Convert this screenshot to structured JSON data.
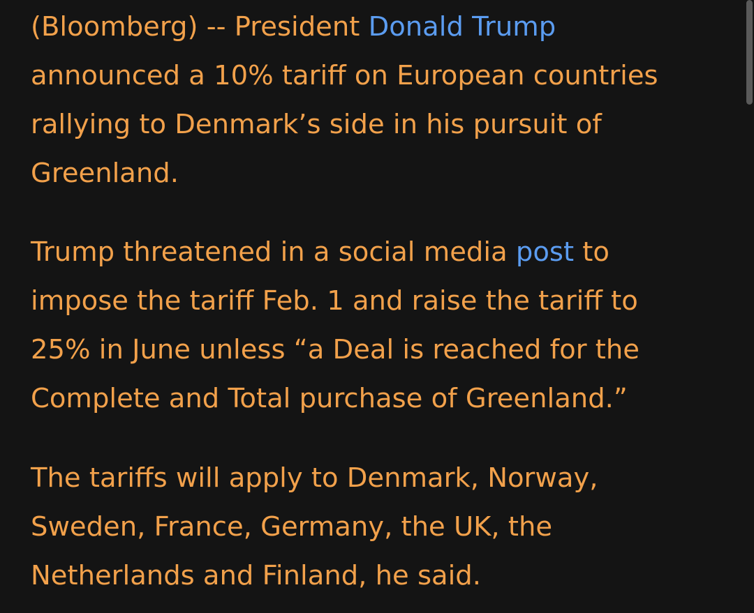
{
  "article": {
    "p1": {
      "l1_pre": "(Bloomberg) -- President ",
      "l1_link": "Donald Trump",
      "l2": "announced a 10% tariff on European countries",
      "l3": "rallying to Denmark’s side in his pursuit of",
      "l4": "Greenland."
    },
    "p2": {
      "l1_pre": "Trump threatened in a social media ",
      "l1_link": "post",
      "l1_post": " to",
      "l2": "impose the tariff Feb. 1 and raise the tariff to",
      "l3": "25% in June unless “a Deal is reached for the",
      "l4": "Complete and Total purchase of Greenland.”"
    },
    "p3": {
      "l1": "The tariffs will apply to Denmark, Norway,",
      "l2": "Sweden, France, Germany, the UK, the",
      "l3": "Netherlands and Finland, he said."
    }
  },
  "colors": {
    "text": "#f2a14b",
    "link": "#5b9cf0",
    "background": "#141414"
  }
}
